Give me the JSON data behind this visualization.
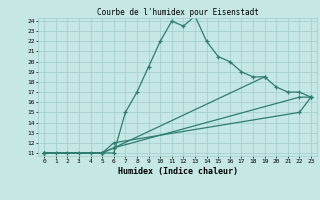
{
  "title": "Courbe de l'humidex pour Eisenstadt",
  "xlabel": "Humidex (Indice chaleur)",
  "xlim": [
    -0.5,
    23.5
  ],
  "ylim": [
    10.7,
    24.3
  ],
  "xticks": [
    0,
    1,
    2,
    3,
    4,
    5,
    6,
    7,
    8,
    9,
    10,
    11,
    12,
    13,
    14,
    15,
    16,
    17,
    18,
    19,
    20,
    21,
    22,
    23
  ],
  "yticks": [
    11,
    12,
    13,
    14,
    15,
    16,
    17,
    18,
    19,
    20,
    21,
    22,
    23,
    24
  ],
  "line_color": "#2e7d6e",
  "bg_color": "#c5e8e5",
  "grid_color": "#a0ccc8",
  "lines": [
    {
      "x": [
        0,
        1,
        2,
        3,
        4,
        5,
        6,
        7,
        8,
        9,
        10,
        11,
        12,
        13,
        14,
        15,
        16,
        17,
        18,
        19
      ],
      "y": [
        11,
        11,
        11,
        11,
        11,
        11,
        11,
        15,
        17,
        19.5,
        22,
        24,
        23.5,
        24.5,
        22,
        20.5,
        20,
        19,
        18.5,
        18.5
      ]
    },
    {
      "x": [
        0,
        5,
        6,
        19,
        20,
        21,
        22,
        23
      ],
      "y": [
        11,
        11,
        11.5,
        18.5,
        17.5,
        17,
        17,
        16.5
      ]
    },
    {
      "x": [
        0,
        5,
        6,
        22,
        23
      ],
      "y": [
        11,
        11,
        11.5,
        16.5,
        16.5
      ]
    },
    {
      "x": [
        0,
        5,
        6,
        22,
        23
      ],
      "y": [
        11,
        11,
        12,
        15,
        16.5
      ]
    }
  ]
}
